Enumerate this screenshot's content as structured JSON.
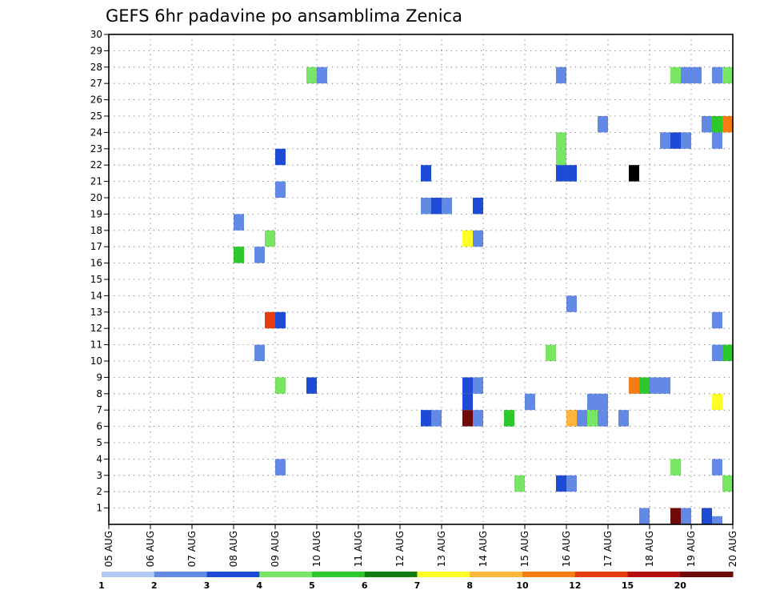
{
  "chart_data": {
    "type": "heatmap",
    "title": "GEFS 6hr padavine po ansamblima Zenica",
    "xlabel": "",
    "ylabel": "",
    "x_tick_labels": [
      "05 AUG",
      "06 AUG",
      "07 AUG",
      "08 AUG",
      "09 AUG",
      "10 AUG",
      "11 AUG",
      "12 AUG",
      "13 AUG",
      "14 AUG",
      "15 AUG",
      "16 AUG",
      "17 AUG",
      "18 AUG",
      "19 AUG",
      "20 AUG"
    ],
    "y_tick_labels": [
      "1",
      "2",
      "3",
      "4",
      "5",
      "6",
      "7",
      "8",
      "9",
      "10",
      "11",
      "12",
      "13",
      "14",
      "15",
      "16",
      "17",
      "18",
      "19",
      "20",
      "21",
      "22",
      "23",
      "24",
      "25",
      "26",
      "27",
      "28",
      "29",
      "30"
    ],
    "xlim": [
      0,
      60
    ],
    "ylim": [
      0,
      30
    ],
    "x_unit": "6h steps from 05 AUG 00Z",
    "y_unit": "ensemble member",
    "grid": true,
    "colorbar": {
      "labels": [
        "1",
        "2",
        "3",
        "4",
        "5",
        "6",
        "7",
        "8",
        "10",
        "12",
        "15",
        "20"
      ],
      "colors": [
        "#b4c7f5",
        "#6389e6",
        "#1e4bd6",
        "#78e664",
        "#2cc82c",
        "#0f7d0f",
        "#ffff28",
        "#ffb43c",
        "#f57d14",
        "#e63c0f",
        "#b40f0f",
        "#6e0a0a"
      ]
    },
    "cells": [
      {
        "step": 19,
        "member": 28,
        "level": 3
      },
      {
        "step": 20,
        "member": 28,
        "level": 1
      },
      {
        "step": 43,
        "member": 28,
        "level": 1
      },
      {
        "step": 54,
        "member": 28,
        "level": 3
      },
      {
        "step": 55,
        "member": 28,
        "level": 1
      },
      {
        "step": 56,
        "member": 28,
        "level": 1
      },
      {
        "step": 58,
        "member": 28,
        "level": 1
      },
      {
        "step": 59,
        "member": 28,
        "level": 3
      },
      {
        "step": 47,
        "member": 25,
        "level": 1
      },
      {
        "step": 57,
        "member": 25,
        "level": 1
      },
      {
        "step": 58,
        "member": 25,
        "level": 4
      },
      {
        "step": 59,
        "member": 25,
        "level": 8
      },
      {
        "step": 43,
        "member": 24,
        "level": 3
      },
      {
        "step": 53,
        "member": 24,
        "level": 1
      },
      {
        "step": 54,
        "member": 24,
        "level": 2
      },
      {
        "step": 55,
        "member": 24,
        "level": 1
      },
      {
        "step": 58,
        "member": 24,
        "level": 1
      },
      {
        "step": 16,
        "member": 23,
        "level": 2
      },
      {
        "step": 43,
        "member": 23,
        "level": 3
      },
      {
        "step": 30,
        "member": 22,
        "level": 2
      },
      {
        "step": 43,
        "member": 22,
        "level": 2
      },
      {
        "step": 44,
        "member": 22,
        "level": 2
      },
      {
        "step": 50,
        "member": 22,
        "level": 12
      },
      {
        "step": 16,
        "member": 21,
        "level": 1
      },
      {
        "step": 30,
        "member": 20,
        "level": 1
      },
      {
        "step": 31,
        "member": 20,
        "level": 2
      },
      {
        "step": 32,
        "member": 20,
        "level": 1
      },
      {
        "step": 35,
        "member": 20,
        "level": 2
      },
      {
        "step": 12,
        "member": 19,
        "level": 1
      },
      {
        "step": 15,
        "member": 18,
        "level": 3
      },
      {
        "step": 34,
        "member": 18,
        "level": 6
      },
      {
        "step": 35,
        "member": 18,
        "level": 1
      },
      {
        "step": 12,
        "member": 17,
        "level": 4
      },
      {
        "step": 14,
        "member": 17,
        "level": 1
      },
      {
        "step": 44,
        "member": 14,
        "level": 1
      },
      {
        "step": 15,
        "member": 13,
        "level": 9
      },
      {
        "step": 16,
        "member": 13,
        "level": 2
      },
      {
        "step": 58,
        "member": 13,
        "level": 1
      },
      {
        "step": 14,
        "member": 11,
        "level": 1
      },
      {
        "step": 42,
        "member": 11,
        "level": 3
      },
      {
        "step": 58,
        "member": 11,
        "level": 1
      },
      {
        "step": 59,
        "member": 11,
        "level": 4
      },
      {
        "step": 16,
        "member": 9,
        "level": 3
      },
      {
        "step": 19,
        "member": 9,
        "level": 2
      },
      {
        "step": 34,
        "member": 9,
        "level": 2
      },
      {
        "step": 35,
        "member": 9,
        "level": 1
      },
      {
        "step": 50,
        "member": 9,
        "level": 8
      },
      {
        "step": 51,
        "member": 9,
        "level": 4
      },
      {
        "step": 52,
        "member": 9,
        "level": 1
      },
      {
        "step": 53,
        "member": 9,
        "level": 1
      },
      {
        "step": 34,
        "member": 8,
        "level": 2
      },
      {
        "step": 40,
        "member": 8,
        "level": 1
      },
      {
        "step": 46,
        "member": 8,
        "level": 1
      },
      {
        "step": 47,
        "member": 8,
        "level": 1
      },
      {
        "step": 58,
        "member": 8,
        "level": 6
      },
      {
        "step": 30,
        "member": 7,
        "level": 2
      },
      {
        "step": 31,
        "member": 7,
        "level": 1
      },
      {
        "step": 34,
        "member": 7,
        "level": 11
      },
      {
        "step": 35,
        "member": 7,
        "level": 1
      },
      {
        "step": 38,
        "member": 7,
        "level": 4
      },
      {
        "step": 44,
        "member": 7,
        "level": 7
      },
      {
        "step": 45,
        "member": 7,
        "level": 1
      },
      {
        "step": 46,
        "member": 7,
        "level": 3
      },
      {
        "step": 47,
        "member": 7,
        "level": 1
      },
      {
        "step": 49,
        "member": 7,
        "level": 1
      },
      {
        "step": 16,
        "member": 4,
        "level": 1
      },
      {
        "step": 54,
        "member": 4,
        "level": 3
      },
      {
        "step": 58,
        "member": 4,
        "level": 1
      },
      {
        "step": 39,
        "member": 3,
        "level": 3
      },
      {
        "step": 43,
        "member": 3,
        "level": 2
      },
      {
        "step": 44,
        "member": 3,
        "level": 1
      },
      {
        "step": 59,
        "member": 3,
        "level": 3
      },
      {
        "step": 51,
        "member": 1,
        "level": 1
      },
      {
        "step": 54,
        "member": 1,
        "level": 11
      },
      {
        "step": 55,
        "member": 1,
        "level": 1
      },
      {
        "step": 57,
        "member": 1,
        "level": 2
      },
      {
        "step": 58,
        "member": 0,
        "level": 1
      }
    ]
  }
}
